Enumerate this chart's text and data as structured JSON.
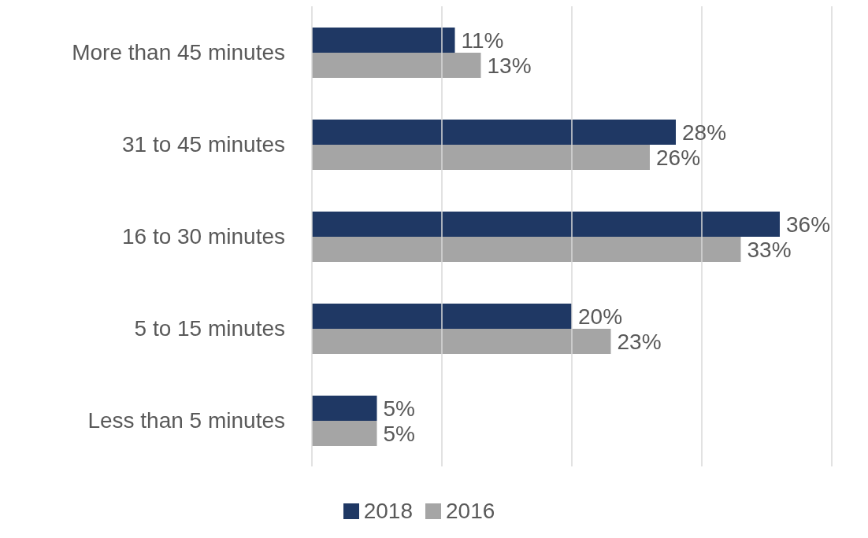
{
  "chart_data": {
    "type": "bar",
    "orientation": "horizontal",
    "categories": [
      "More than 45 minutes",
      "31 to 45 minutes",
      "16 to 30 minutes",
      "5 to 15 minutes",
      "Less than 5 minutes"
    ],
    "series": [
      {
        "name": "2018",
        "color": "#1f3864",
        "values": [
          11,
          28,
          36,
          20,
          5
        ],
        "value_labels": [
          "11%",
          "28%",
          "36%",
          "20%",
          "5%"
        ]
      },
      {
        "name": "2016",
        "color": "#a5a5a5",
        "values": [
          13,
          26,
          33,
          23,
          5
        ],
        "value_labels": [
          "13%",
          "26%",
          "33%",
          "23%",
          "5%"
        ]
      }
    ],
    "xlim": [
      0,
      40
    ],
    "xticks": [
      {
        "value": 0,
        "label": null
      },
      {
        "value": 10,
        "label": null
      },
      {
        "value": 20,
        "label": null
      },
      {
        "value": 30,
        "label": null
      },
      {
        "value": 40,
        "label": null
      }
    ],
    "tick_labels": "y",
    "grid": "x",
    "legend": "bottom"
  }
}
